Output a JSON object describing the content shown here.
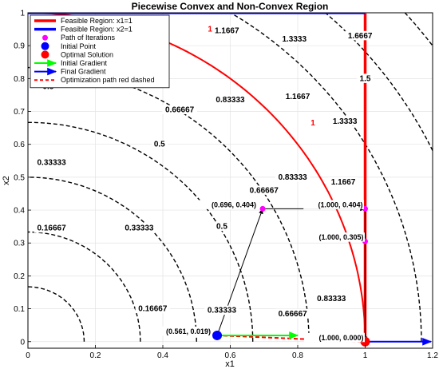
{
  "chart_data": {
    "type": "line",
    "title": "Piecewise Convex and Non-Convex Region",
    "xlabel": "x1",
    "ylabel": "x2",
    "xlim": [
      0,
      1.2
    ],
    "ylim": [
      -0.02,
      1.0
    ],
    "xticks": [
      "0",
      "0.2",
      "0.4",
      "0.6",
      "0.8",
      "1",
      "1.2"
    ],
    "yticks": [
      "0",
      "0.1",
      "0.2",
      "0.3",
      "0.4",
      "0.5",
      "0.6",
      "0.7",
      "0.8",
      "0.9",
      "1"
    ],
    "grid": true,
    "legend_position": "top-left",
    "contours": [
      {
        "level": 0.16667,
        "label": "0.16667"
      },
      {
        "level": 0.33333,
        "label": "0.33333"
      },
      {
        "level": 0.5,
        "label": "0.5"
      },
      {
        "level": 0.66667,
        "label": "0.66667"
      },
      {
        "level": 0.83333,
        "label": "0.83333"
      },
      {
        "level": 1.1667,
        "label": "1.1667"
      },
      {
        "level": 1.3333,
        "label": "1.3333"
      },
      {
        "level": 1.5,
        "label": "1.5"
      },
      {
        "level": 1.6667,
        "label": "1.6667"
      }
    ],
    "contour_labels": [
      {
        "text": "0.16667",
        "x": 0.07,
        "y": 0.345
      },
      {
        "text": "0.16667",
        "x": 0.37,
        "y": 0.1
      },
      {
        "text": "0.33333",
        "x": 0.07,
        "y": 0.545
      },
      {
        "text": "0.33333",
        "x": 0.33,
        "y": 0.345
      },
      {
        "text": "0.33333",
        "x": 0.575,
        "y": 0.095
      },
      {
        "text": "0.5",
        "x": 0.06,
        "y": 0.775
      },
      {
        "text": "0.5",
        "x": 0.39,
        "y": 0.6
      },
      {
        "text": "0.5",
        "x": 0.575,
        "y": 0.35
      },
      {
        "text": "0.66667",
        "x": 0.45,
        "y": 0.705
      },
      {
        "text": "0.66667",
        "x": 0.7,
        "y": 0.46
      },
      {
        "text": "0.66667",
        "x": 0.785,
        "y": 0.085
      },
      {
        "text": "0.83333",
        "x": 0.6,
        "y": 0.735
      },
      {
        "text": "0.83333",
        "x": 0.785,
        "y": 0.5
      },
      {
        "text": "0.83333",
        "x": 0.9,
        "y": 0.13
      },
      {
        "text": "1.1667",
        "x": 0.59,
        "y": 0.945
      },
      {
        "text": "1.1667",
        "x": 0.8,
        "y": 0.745
      },
      {
        "text": "1.1667",
        "x": 0.935,
        "y": 0.485
      },
      {
        "text": "1.3333",
        "x": 0.79,
        "y": 0.92
      },
      {
        "text": "1.3333",
        "x": 0.94,
        "y": 0.67
      },
      {
        "text": "1.5",
        "x": 1.0,
        "y": 0.8
      },
      {
        "text": "1.6667",
        "x": 0.985,
        "y": 0.93
      }
    ],
    "unit_circle": {
      "level": 1,
      "label": "1",
      "label_positions": [
        [
          0.54,
          0.95
        ],
        [
          0.845,
          0.665
        ]
      ]
    },
    "boundaries": [
      {
        "name": "Feasible Region: x1=1",
        "color": "#ff0000",
        "x": [
          1,
          1
        ],
        "y": [
          0,
          1
        ]
      },
      {
        "name": "Feasible Region: x2=1",
        "color": "#0000ff",
        "x": [
          0,
          1
        ],
        "y": [
          1,
          1
        ]
      }
    ],
    "path_of_iterations": {
      "name": "Path of Iterations",
      "color": "#ff00ff",
      "x": [
        0.696,
        1.0,
        1.0,
        1.0
      ],
      "y": [
        0.404,
        0.404,
        0.305,
        0.0
      ]
    },
    "iteration_arrows": [
      {
        "from": [
          0.561,
          0.019
        ],
        "to": [
          0.696,
          0.404
        ]
      },
      {
        "from": [
          0.696,
          0.404
        ],
        "to": [
          1.0,
          0.404
        ]
      },
      {
        "from": [
          1.0,
          0.404
        ],
        "to": [
          1.0,
          0.0
        ]
      }
    ],
    "point_labels": [
      {
        "text": "(0.561, 0.019)",
        "x": 0.561,
        "y": 0.019
      },
      {
        "text": "(0.696, 0.404)",
        "x": 0.696,
        "y": 0.404
      },
      {
        "text": "(1.000, 0.404)",
        "x": 1.0,
        "y": 0.404
      },
      {
        "text": "(1.000, 0.305)",
        "x": 1.0,
        "y": 0.305
      },
      {
        "text": "(1.000, 0.000)",
        "x": 1.0,
        "y": 0.0
      }
    ],
    "initial_point": {
      "name": "Initial Point",
      "color": "#0000ff",
      "x": 0.561,
      "y": 0.019
    },
    "optimal_solution": {
      "name": "Optimal Solution",
      "color": "#ff0000",
      "x": 1.0,
      "y": 0.0
    },
    "initial_gradient": {
      "name": "Initial Gradient",
      "color": "#00ff00",
      "from": [
        0.561,
        0.019
      ],
      "to": [
        0.8,
        0.019
      ]
    },
    "final_gradient": {
      "name": "Final Gradient",
      "color": "#0000ff",
      "from": [
        1.0,
        0.0
      ],
      "to": [
        1.2,
        0.0
      ]
    },
    "optimization_path": {
      "name": "Optimization path red dashed",
      "color": "#ff0000",
      "x": [
        0.561,
        1.0
      ],
      "y": [
        0.019,
        0.0
      ]
    },
    "legend": [
      {
        "label": "Feasible Region: x1=1",
        "kind": "line",
        "color": "#ff0000"
      },
      {
        "label": "Feasible Region: x2=1",
        "kind": "line",
        "color": "#0000ff"
      },
      {
        "label": "Path of Iterations",
        "kind": "dot-small",
        "color": "#ff00ff"
      },
      {
        "label": "Initial Point",
        "kind": "dot",
        "color": "#0000ff"
      },
      {
        "label": "Optimal Solution",
        "kind": "dot",
        "color": "#ff0000"
      },
      {
        "label": "Initial Gradient",
        "kind": "arrow",
        "color": "#00ff00"
      },
      {
        "label": "Final Gradient",
        "kind": "arrow",
        "color": "#0000ff"
      },
      {
        "label": "Optimization path red dashed",
        "kind": "dashed",
        "color": "#ff0000"
      }
    ]
  }
}
